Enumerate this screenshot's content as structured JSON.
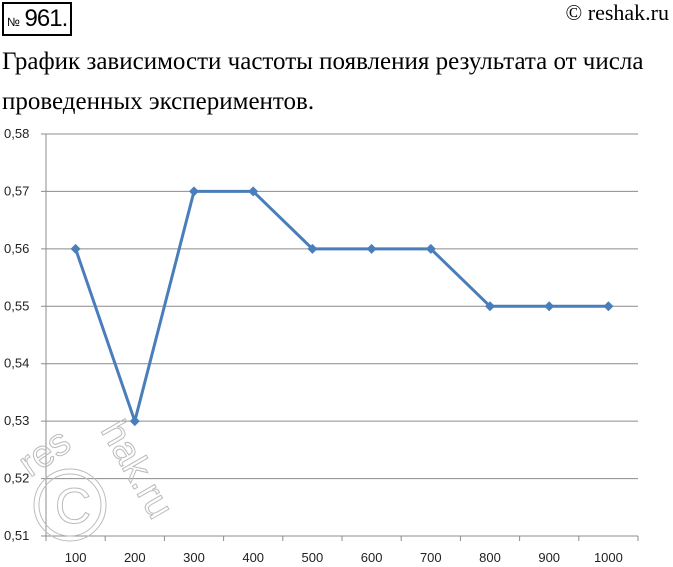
{
  "header": {
    "number_sign": "№",
    "number": "961.",
    "copyright": "© reshak.ru"
  },
  "title": "График зависимости частоты появления результата от числа проведенных экспериментов.",
  "watermark": "reshak.ru",
  "chart_data": {
    "type": "line",
    "categories": [
      "100",
      "200",
      "300",
      "400",
      "500",
      "600",
      "700",
      "800",
      "900",
      "1000"
    ],
    "values": [
      0.56,
      0.53,
      0.57,
      0.57,
      0.56,
      0.56,
      0.56,
      0.55,
      0.55,
      0.55
    ],
    "ylim": [
      0.51,
      0.58
    ],
    "yticks": [
      "0,51",
      "0,52",
      "0,53",
      "0,54",
      "0,55",
      "0,56",
      "0,57",
      "0,58"
    ],
    "grid": true,
    "marker": "diamond",
    "color": "#4a7ebb"
  }
}
